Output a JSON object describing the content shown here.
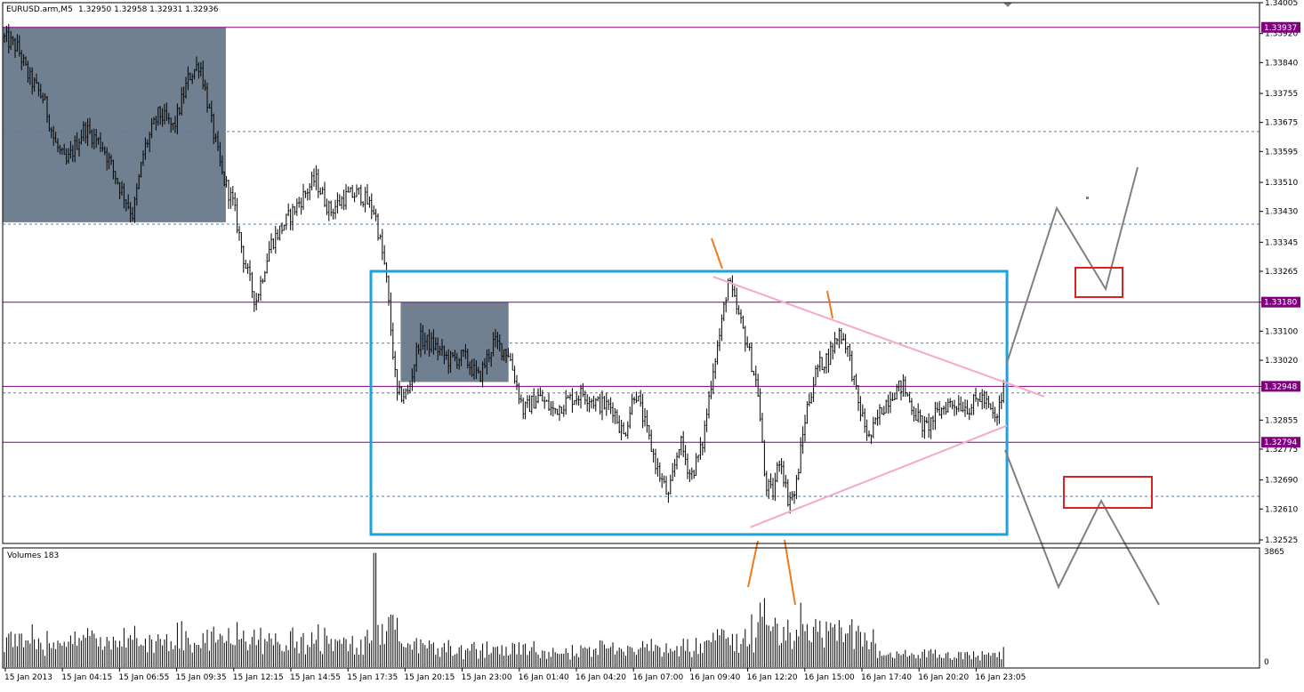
{
  "header": {
    "symbol": "EURUSD.arm,M5",
    "ohlc": "1.32950 1.32958 1.32931 1.32936"
  },
  "volume_panel": {
    "label": "Volumes 183",
    "max_label": "3865",
    "min_label": "0"
  },
  "colors": {
    "price_bars": "#000000",
    "grid_dashed": "#3c82c8",
    "level_lines": "#800080",
    "level_label_bg": "#800080",
    "zone_fill": "#708090",
    "range_box": "#1aa3dc",
    "triangle_lines": "#f5a9c8",
    "pivot_marks": "#f07a1c",
    "projection_lines": "#808080",
    "target_boxes": "#dd2020"
  },
  "chart_data": {
    "type": "candlestick-bars",
    "symbol": "EURUSD.arm",
    "timeframe": "M5",
    "ylim": [
      1.32525,
      1.34005
    ],
    "y_ticks": [
      "1.34005",
      "1.33920",
      "1.33840",
      "1.33755",
      "1.33675",
      "1.33595",
      "1.33510",
      "1.33430",
      "1.33345",
      "1.33265",
      "1.33180",
      "1.33100",
      "1.33020",
      "1.32948",
      "1.32855",
      "1.32775",
      "1.32690",
      "1.32610",
      "1.32525"
    ],
    "x_ticks": [
      "15 Jan 2013",
      "15 Jan 04:15",
      "15 Jan 06:55",
      "15 Jan 09:35",
      "15 Jan 12:15",
      "15 Jan 14:55",
      "15 Jan 17:35",
      "15 Jan 20:15",
      "15 Jan 23:00",
      "16 Jan 01:40",
      "16 Jan 04:20",
      "16 Jan 07:00",
      "16 Jan 09:40",
      "16 Jan 12:20",
      "16 Jan 15:00",
      "16 Jan 17:40",
      "16 Jan 20:20",
      "16 Jan 23:05"
    ],
    "price_path": [
      [
        0,
        1.3391
      ],
      [
        0.04,
        1.3388
      ],
      [
        0.07,
        1.338
      ],
      [
        0.11,
        1.3374
      ],
      [
        0.14,
        1.3362
      ],
      [
        0.17,
        1.3356
      ],
      [
        0.22,
        1.3366
      ],
      [
        0.27,
        1.3361
      ],
      [
        0.31,
        1.3351
      ],
      [
        0.35,
        1.3342
      ],
      [
        0.38,
        1.336
      ],
      [
        0.42,
        1.337
      ],
      [
        0.46,
        1.3366
      ],
      [
        0.5,
        1.338
      ],
      [
        0.53,
        1.3384
      ],
      [
        0.56,
        1.3368
      ],
      [
        0.59,
        1.3353
      ],
      [
        0.62,
        1.3345
      ],
      [
        0.65,
        1.3329
      ],
      [
        0.68,
        1.3318
      ],
      [
        0.72,
        1.3334
      ],
      [
        0.76,
        1.334
      ],
      [
        0.8,
        1.3346
      ],
      [
        0.84,
        1.3352
      ],
      [
        0.88,
        1.3343
      ],
      [
        0.92,
        1.3347
      ],
      [
        0.96,
        1.3348
      ],
      [
        1.0,
        1.3343
      ],
      [
        1.03,
        1.3326
      ],
      [
        1.06,
        1.3292
      ],
      [
        1.09,
        1.3293
      ],
      [
        1.12,
        1.3308
      ],
      [
        1.16,
        1.3306
      ],
      [
        1.2,
        1.3302
      ],
      [
        1.24,
        1.3303
      ],
      [
        1.28,
        1.3297
      ],
      [
        1.32,
        1.3307
      ],
      [
        1.36,
        1.3304
      ],
      [
        1.38,
        1.3296
      ],
      [
        1.4,
        1.3288
      ],
      [
        1.44,
        1.3292
      ],
      [
        1.48,
        1.3288
      ],
      [
        1.52,
        1.3291
      ],
      [
        1.56,
        1.3293
      ],
      [
        1.6,
        1.329
      ],
      [
        1.64,
        1.3289
      ],
      [
        1.67,
        1.3281
      ],
      [
        1.7,
        1.3294
      ],
      [
        1.73,
        1.3283
      ],
      [
        1.76,
        1.3272
      ],
      [
        1.79,
        1.3264
      ],
      [
        1.82,
        1.328
      ],
      [
        1.85,
        1.327
      ],
      [
        1.88,
        1.3278
      ],
      [
        1.91,
        1.33
      ],
      [
        1.93,
        1.331
      ],
      [
        1.95,
        1.3324
      ],
      [
        1.97,
        1.3317
      ],
      [
        2.0,
        1.3307
      ],
      [
        2.03,
        1.3294
      ],
      [
        2.05,
        1.3268
      ],
      [
        2.07,
        1.3265
      ],
      [
        2.09,
        1.3276
      ],
      [
        2.11,
        1.3264
      ],
      [
        2.13,
        1.3265
      ],
      [
        2.16,
        1.3288
      ],
      [
        2.19,
        1.33
      ],
      [
        2.22,
        1.3303
      ],
      [
        2.25,
        1.331
      ],
      [
        2.27,
        1.3306
      ],
      [
        2.3,
        1.329
      ],
      [
        2.33,
        1.328
      ],
      [
        2.36,
        1.3288
      ],
      [
        2.39,
        1.3293
      ],
      [
        2.42,
        1.3295
      ],
      [
        2.45,
        1.3288
      ],
      [
        2.48,
        1.3283
      ],
      [
        2.51,
        1.3287
      ],
      [
        2.54,
        1.329
      ],
      [
        2.57,
        1.329
      ],
      [
        2.6,
        1.3289
      ],
      [
        2.63,
        1.3292
      ],
      [
        2.65,
        1.3289
      ],
      [
        2.67,
        1.3285
      ],
      [
        2.69,
        1.3294
      ]
    ],
    "horizontal_levels": [
      1.33937,
      1.3318,
      1.32948,
      1.32794
    ],
    "level_labels": [
      "1.33937",
      "1.33180",
      "1.32948",
      "1.32794"
    ],
    "dashed_levels": [
      1.3365,
      1.33395,
      1.33067,
      1.3293,
      1.32645
    ],
    "zones": [
      {
        "x": [
          0.0,
          0.6
        ],
        "y": [
          1.334,
          1.33937
        ]
      },
      {
        "x": [
          1.07,
          1.36
        ],
        "y": [
          1.3296,
          1.3318
        ]
      }
    ],
    "range_box": {
      "x": [
        0.99,
        2.7
      ],
      "y": [
        1.3254,
        1.33265
      ]
    },
    "triangle": {
      "upper": [
        [
          1.91,
          1.3325
        ],
        [
          2.8,
          1.3292
        ]
      ],
      "lower": [
        [
          2.01,
          1.3256
        ],
        [
          2.7,
          1.3284
        ]
      ]
    },
    "volume_max": 3865
  }
}
